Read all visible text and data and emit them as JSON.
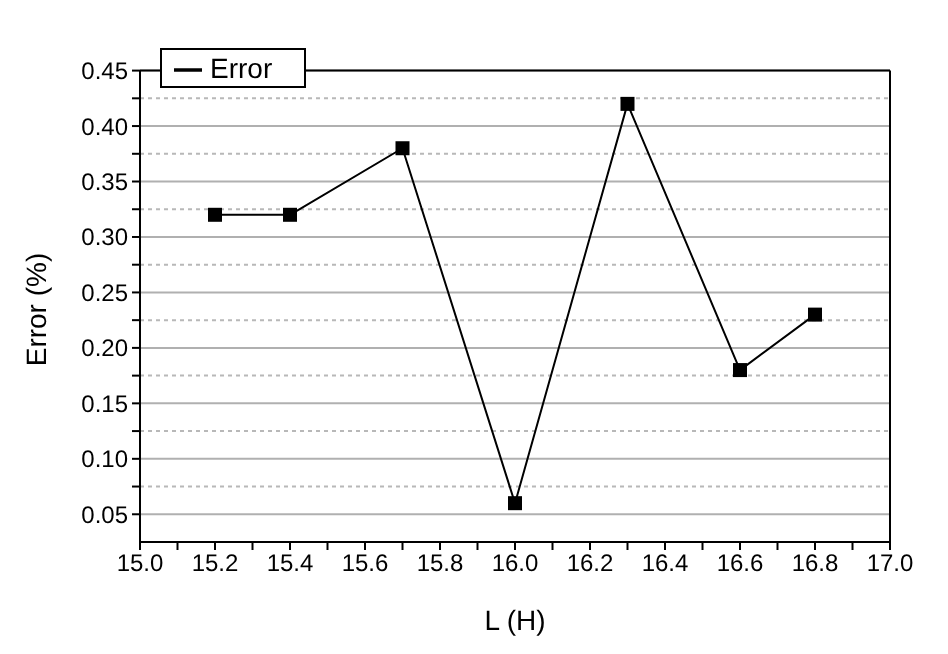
{
  "chart_data": {
    "type": "line",
    "xlabel": "L (H)",
    "ylabel": "Error (%)",
    "x": [
      15.2,
      15.4,
      15.7,
      16.0,
      16.3,
      16.6,
      16.8
    ],
    "series": [
      {
        "name": "Error",
        "color": "#000000",
        "values": [
          0.32,
          0.32,
          0.38,
          0.06,
          0.42,
          0.18,
          0.23
        ]
      }
    ],
    "xlim": [
      15.0,
      17.0
    ],
    "xticks": [
      {
        "value": 15.0,
        "label": "15.0"
      },
      {
        "value": 15.1,
        "label": null
      },
      15.2,
      {
        "value": 15.3,
        "label": null
      },
      15.4,
      {
        "value": 15.5,
        "label": null
      },
      15.6,
      {
        "value": 15.7,
        "label": null
      },
      15.8,
      {
        "value": 15.9,
        "label": null
      },
      {
        "value": 16.0,
        "label": "16.0"
      },
      {
        "value": 16.1,
        "label": null
      },
      16.2,
      {
        "value": 16.3,
        "label": null
      },
      16.4,
      {
        "value": 16.5,
        "label": null
      },
      16.6,
      {
        "value": 16.7,
        "label": null
      },
      16.8,
      {
        "value": 16.9,
        "label": null
      },
      {
        "value": 17.0,
        "label": "17.0"
      }
    ],
    "ylim": [
      0.025,
      0.45
    ],
    "yticks": [
      0.05,
      {
        "value": 0.075,
        "label": null
      },
      {
        "value": 0.1,
        "label": "0.10"
      },
      {
        "value": 0.125,
        "label": null
      },
      0.15,
      {
        "value": 0.175,
        "label": null
      },
      {
        "value": 0.2,
        "label": "0.20"
      },
      {
        "value": 0.225,
        "label": null
      },
      0.25,
      {
        "value": 0.275,
        "label": null
      },
      {
        "value": 0.3,
        "label": "0.30"
      },
      {
        "value": 0.325,
        "label": null
      },
      0.35,
      {
        "value": 0.375,
        "label": null
      },
      {
        "value": 0.4,
        "label": "0.40"
      },
      {
        "value": 0.425,
        "label": null
      },
      0.45
    ],
    "grid": "y",
    "legend": "top left",
    "marker": "square",
    "line_style": "solid"
  }
}
